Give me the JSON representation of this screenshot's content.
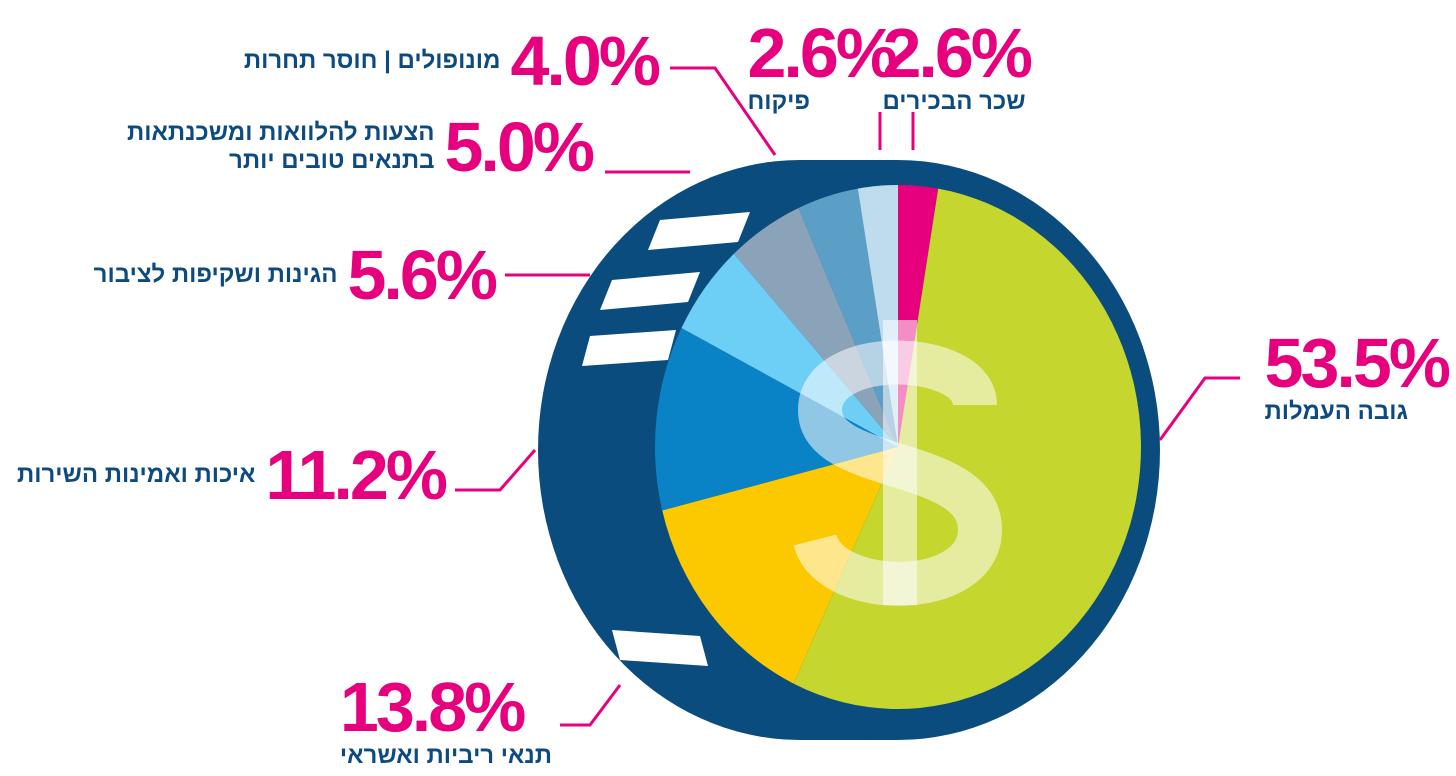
{
  "chart_data": {
    "type": "pie",
    "categories": [
      "שכר הבכירים",
      "גובה העמלות",
      "תנאי ריביות ואשראי",
      "איכות ואמינות השירות",
      "הגינות ושקיפות לציבור",
      "הצעות להלוואות ומשכנתאות בתנאים טובים יותר",
      "מונופולים | חוסר תחרות",
      "פיקוח"
    ],
    "values": [
      2.6,
      53.5,
      13.8,
      11.2,
      5.6,
      5.0,
      4.0,
      2.6
    ],
    "value_labels": [
      "2.6%",
      "53.5%",
      "13.8%",
      "11.2%",
      "5.6%",
      "5.0%",
      "4.0%",
      "2.6%"
    ],
    "colors": [
      "#e6007e",
      "#c5d62e",
      "#fcc800",
      "#0a83c6",
      "#6dcff6",
      "#8aa3b8",
      "#5b9ec6",
      "#bfdcef"
    ]
  }
}
